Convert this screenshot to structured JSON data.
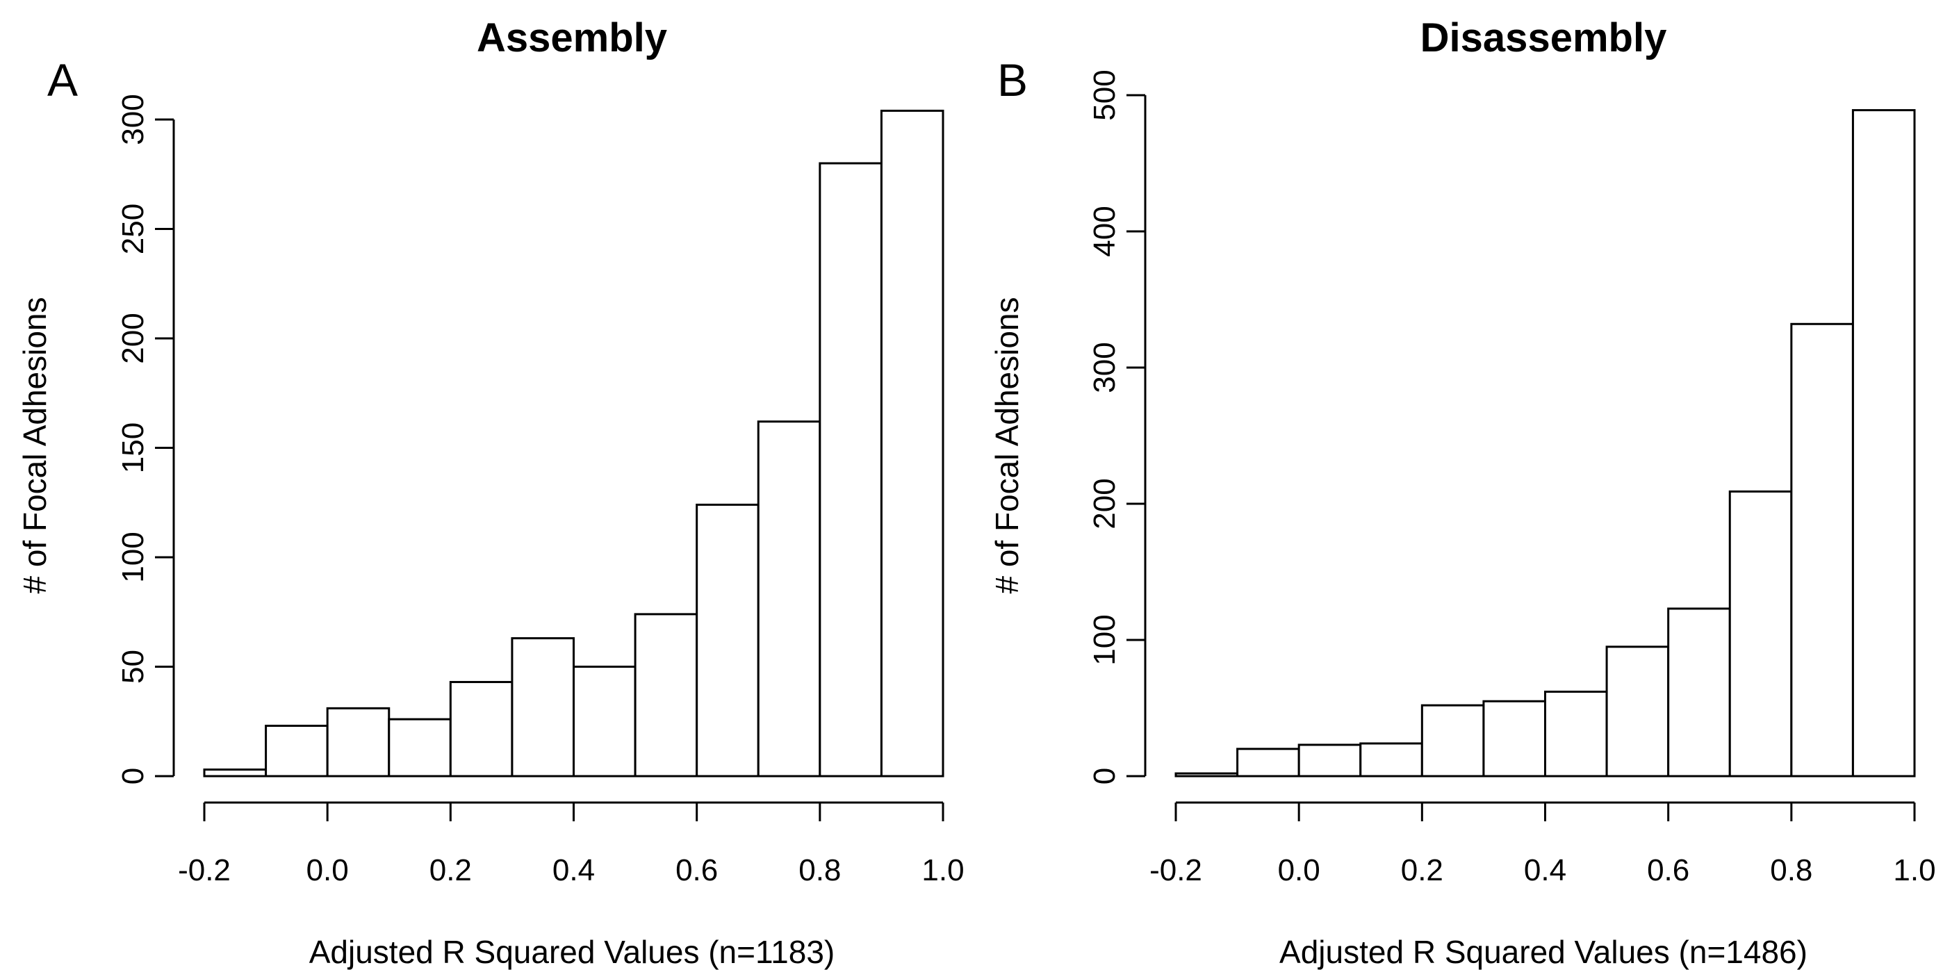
{
  "chart_data": [
    {
      "type": "bar",
      "panel_label": "A",
      "title": "Assembly",
      "xlabel": "Adjusted R Squared Values (n=1183)",
      "ylabel": "# of Focal Adhesions",
      "bin_edges": [
        -0.2,
        -0.1,
        0.0,
        0.1,
        0.2,
        0.3,
        0.4,
        0.5,
        0.6,
        0.7,
        0.8,
        0.9,
        1.0
      ],
      "values": [
        3,
        23,
        31,
        26,
        43,
        63,
        50,
        74,
        124,
        162,
        280,
        304
      ],
      "xlim": [
        -0.2,
        1.0
      ],
      "ylim": [
        0,
        300
      ],
      "xticks": [
        "-0.2",
        "0.0",
        "0.2",
        "0.4",
        "0.6",
        "0.8",
        "1.0"
      ],
      "yticks": [
        "0",
        "50",
        "100",
        "150",
        "200",
        "250",
        "300"
      ],
      "grid": false
    },
    {
      "type": "bar",
      "panel_label": "B",
      "title": "Disassembly",
      "xlabel": "Adjusted R Squared Values (n=1486)",
      "ylabel": "# of Focal Adhesions",
      "bin_edges": [
        -0.2,
        -0.1,
        0.0,
        0.1,
        0.2,
        0.3,
        0.4,
        0.5,
        0.6,
        0.7,
        0.8,
        0.9,
        1.0
      ],
      "values": [
        2,
        20,
        23,
        24,
        52,
        55,
        62,
        95,
        123,
        209,
        332,
        489
      ],
      "xlim": [
        -0.2,
        1.0
      ],
      "ylim": [
        0,
        500
      ],
      "xticks": [
        "-0.2",
        "0.0",
        "0.2",
        "0.4",
        "0.6",
        "0.8",
        "1.0"
      ],
      "yticks": [
        "0",
        "100",
        "200",
        "300",
        "400",
        "500"
      ],
      "grid": false
    }
  ]
}
